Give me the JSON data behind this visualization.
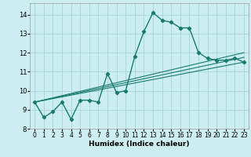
{
  "xlabel": "Humidex (Indice chaleur)",
  "background_color": "#cceef0",
  "grid_color": "#aad8dc",
  "line_color": "#1a7a6e",
  "xlim": [
    -0.5,
    23.5
  ],
  "ylim": [
    8.0,
    14.6
  ],
  "yticks": [
    8,
    9,
    10,
    11,
    12,
    13,
    14
  ],
  "xticks": [
    0,
    1,
    2,
    3,
    4,
    5,
    6,
    7,
    8,
    9,
    10,
    11,
    12,
    13,
    14,
    15,
    16,
    17,
    18,
    19,
    20,
    21,
    22,
    23
  ],
  "main_x": [
    0,
    1,
    2,
    3,
    4,
    5,
    6,
    7,
    8,
    9,
    10,
    11,
    12,
    13,
    14,
    15,
    16,
    17,
    18,
    19,
    20,
    21,
    22,
    23
  ],
  "main_y": [
    9.4,
    8.6,
    8.9,
    9.4,
    8.5,
    9.5,
    9.5,
    9.4,
    10.9,
    9.9,
    10.0,
    11.8,
    13.1,
    14.1,
    13.7,
    13.6,
    13.3,
    13.3,
    12.0,
    11.7,
    11.6,
    11.6,
    11.7,
    11.5
  ],
  "trend_lines": [
    {
      "x": [
        0,
        23
      ],
      "y": [
        9.4,
        11.75
      ]
    },
    {
      "x": [
        0,
        23
      ],
      "y": [
        9.4,
        11.5
      ]
    },
    {
      "x": [
        0,
        23
      ],
      "y": [
        9.4,
        12.0
      ]
    }
  ],
  "xlabel_fontsize": 6.5,
  "tick_fontsize": 5.5,
  "ytick_fontsize": 6.0
}
